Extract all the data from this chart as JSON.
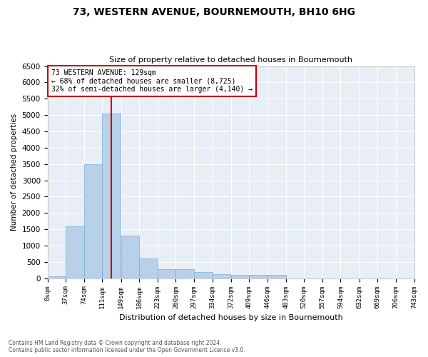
{
  "title": "73, WESTERN AVENUE, BOURNEMOUTH, BH10 6HG",
  "subtitle": "Size of property relative to detached houses in Bournemouth",
  "xlabel": "Distribution of detached houses by size in Bournemouth",
  "ylabel": "Number of detached properties",
  "bar_color": "#b8d0e8",
  "bar_edge_color": "#7aafd4",
  "background_color": "#e8eef5",
  "property_size": 129,
  "property_line_color": "#cc0000",
  "annotation_text": "73 WESTERN AVENUE: 129sqm\n← 68% of detached houses are smaller (8,725)\n32% of semi-detached houses are larger (4,140) →",
  "annotation_box_color": "#cc0000",
  "bin_edges": [
    0,
    37,
    74,
    111,
    149,
    186,
    223,
    260,
    297,
    334,
    372,
    409,
    446,
    483,
    520,
    557,
    594,
    632,
    669,
    706,
    743
  ],
  "bin_labels": [
    "0sqm",
    "37sqm",
    "74sqm",
    "111sqm",
    "149sqm",
    "186sqm",
    "223sqm",
    "260sqm",
    "297sqm",
    "334sqm",
    "372sqm",
    "409sqm",
    "446sqm",
    "483sqm",
    "520sqm",
    "557sqm",
    "594sqm",
    "632sqm",
    "669sqm",
    "706sqm",
    "743sqm"
  ],
  "bar_heights": [
    50,
    1600,
    3500,
    5050,
    1300,
    600,
    280,
    280,
    200,
    130,
    100,
    100,
    100,
    0,
    0,
    0,
    0,
    0,
    0,
    0
  ],
  "ylim": [
    0,
    6500
  ],
  "yticks": [
    0,
    500,
    1000,
    1500,
    2000,
    2500,
    3000,
    3500,
    4000,
    4500,
    5000,
    5500,
    6000,
    6500
  ],
  "footer_line1": "Contains HM Land Registry data © Crown copyright and database right 2024.",
  "footer_line2": "Contains public sector information licensed under the Open Government Licence v3.0."
}
